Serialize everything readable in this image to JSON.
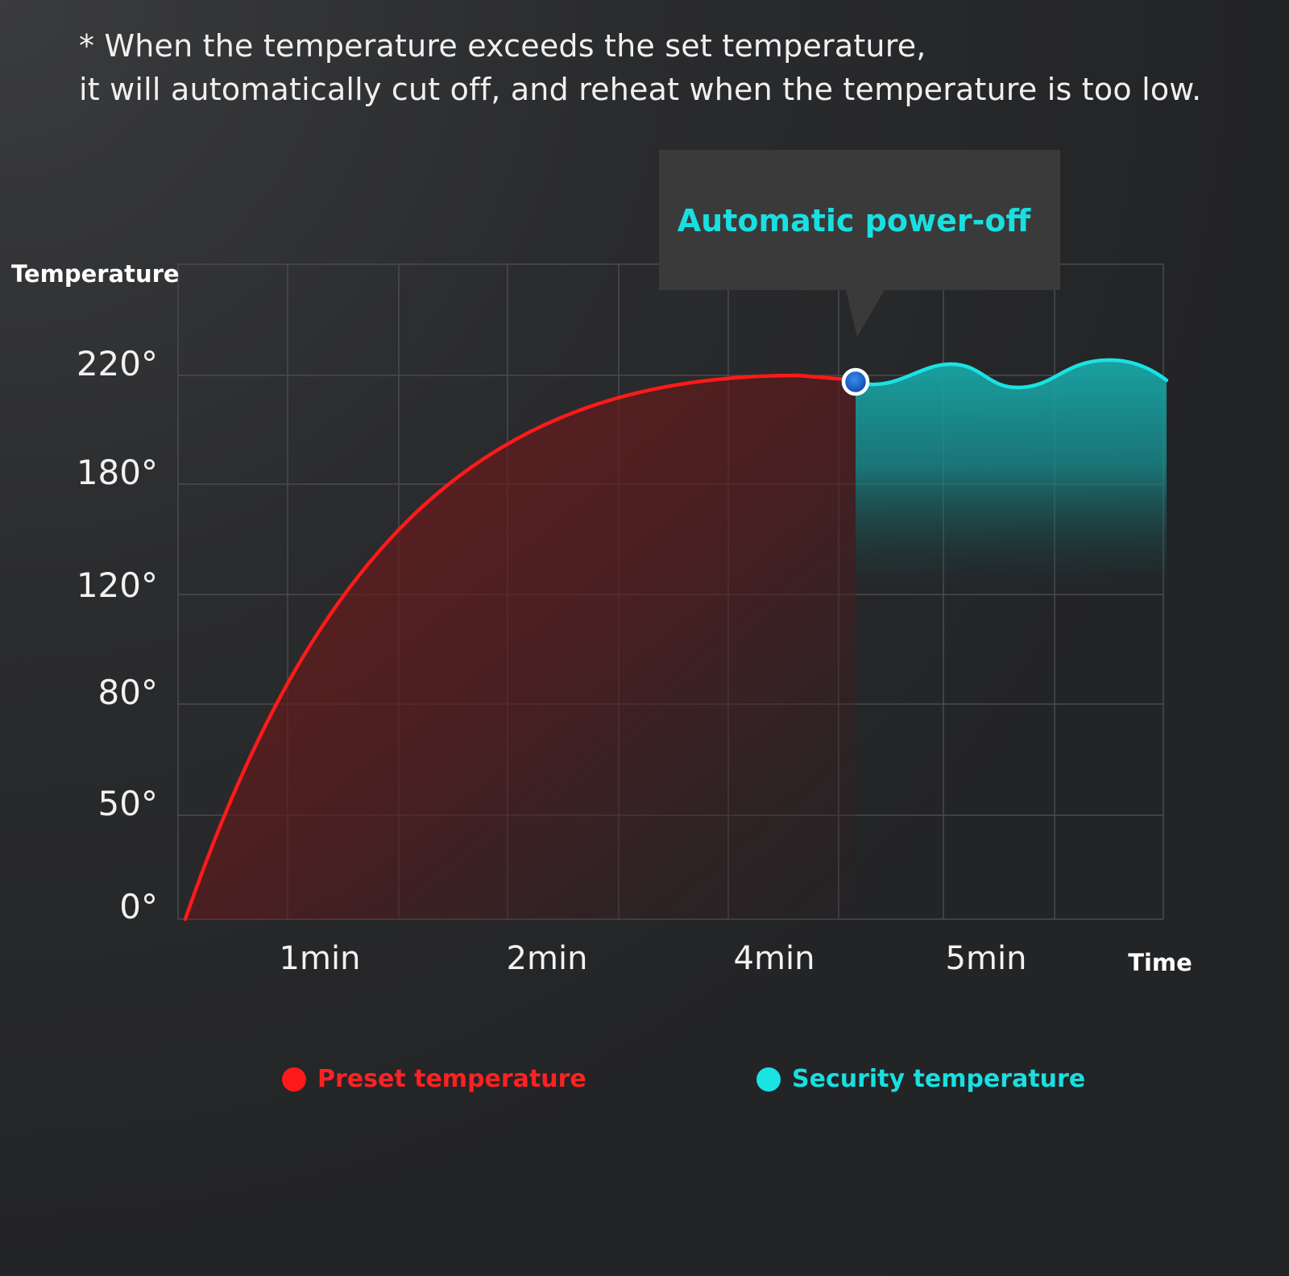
{
  "note": {
    "line1": "* When the temperature exceeds the set temperature,",
    "line2": "it will automatically cut off, and reheat when the temperature is too low."
  },
  "colors": {
    "preset": "#ff1a1a",
    "security": "#19e3e3",
    "callout_text": "#19dfe0",
    "background": "#232426",
    "grid": "#4a4b4e"
  },
  "chart_data": {
    "type": "area",
    "ylabel": "Temperature",
    "xlabel": "Time",
    "y_ticks": [
      "220°",
      "180°",
      "120°",
      "80°",
      "50°",
      "0°"
    ],
    "x_ticks": [
      "1min",
      "2min",
      "4min",
      "5min"
    ],
    "grid": true,
    "legend_position": "bottom",
    "annotation": {
      "text": "Automatic power-off"
    },
    "series": [
      {
        "name": "Preset temperature",
        "color": "#ff1a1a",
        "shape": "rises from 0° and levels off at 220°"
      },
      {
        "name": "Security temperature",
        "color": "#19e3e3",
        "shape": "holds near 220° with small up and down waves"
      }
    ]
  }
}
